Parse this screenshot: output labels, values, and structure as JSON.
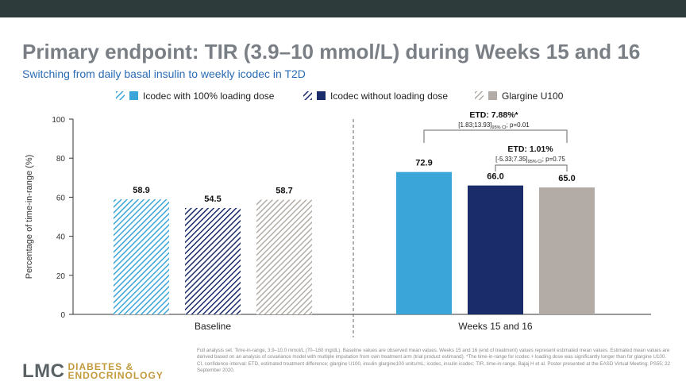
{
  "title": "Primary endpoint: TIR (3.9–10 mmol/L) during Weeks 15 and 16",
  "subtitle": "Switching from daily basal insulin to weekly icodec in T2D",
  "colors": {
    "icodec_loading": "#3aa5d9",
    "icodec_no_loading": "#1b2c6b",
    "glargine": "#b3aca6",
    "title": "#7a7f85",
    "subtitle": "#2a6cb5"
  },
  "chart_data": {
    "type": "bar",
    "ylabel": "Percentage of time-in-range (%)",
    "ylim": [
      0,
      100
    ],
    "yticks": [
      0,
      20,
      40,
      60,
      80,
      100
    ],
    "categories": [
      "Baseline",
      "Weeks 15 and 16"
    ],
    "legend_position": "top",
    "series": [
      {
        "name": "Icodec with 100% loading dose",
        "values": [
          58.9,
          72.9
        ],
        "labels": [
          "58.9",
          "72.9"
        ]
      },
      {
        "name": "Icodec without loading dose",
        "values": [
          54.5,
          66.0
        ],
        "labels": [
          "54.5",
          "66.0"
        ]
      },
      {
        "name": "Glargine U100",
        "values": [
          58.7,
          65.0
        ],
        "labels": [
          "58.7",
          "65.0"
        ]
      }
    ],
    "annotations": [
      {
        "label": "ETD: 7.88%*",
        "ci": "[1.83;13.93]",
        "ci_sub": "95% CI",
        "p": "; p=0.01"
      },
      {
        "label": "ETD: 1.01%",
        "ci": "[-5.33;7.35]",
        "ci_sub": "95% CI",
        "p": "; p=0.75"
      }
    ]
  },
  "footnote": "Full analysis set. Time-in-range, 3.9–10.0 mmol/L (70–180 mg/dL). Baseline values are observed mean values. Weeks 15 and 16 (end of treatment) values represent estimated mean values. Estimated mean values are derived based on an analysis of covariance model with multiple imputation from own treatment arm (trial product estimand). *The time-in-range for icodec + loading dose was significantly longer than for glargine U100. CI, confidence interval; ETD, estimated treatment difference; glargine U100, insulin glargine100 units/mL; icodec, insulin icodec; TIR, time-in-range. Bajaj H et al. Poster presented at the EASD Virtual Meeting; PS55; 22 September 2020.",
  "logo": {
    "main": "LMC",
    "line1": "DIABETES &",
    "line2": "ENDOCRINOLOGY"
  }
}
